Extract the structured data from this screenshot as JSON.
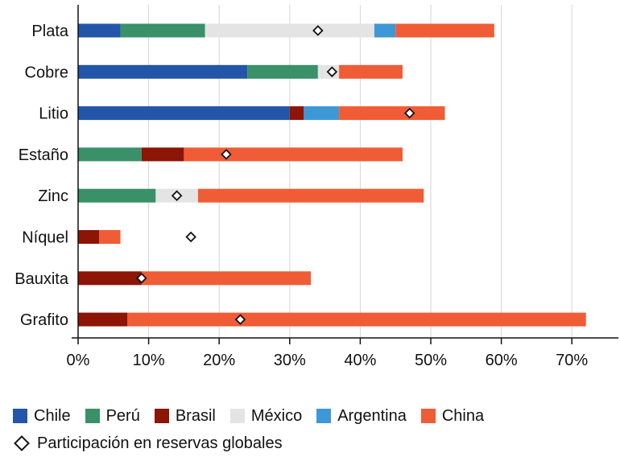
{
  "chart_data": {
    "type": "bar",
    "orientation": "horizontal",
    "stacked": true,
    "categories": [
      "Plata",
      "Cobre",
      "Litio",
      "Estaño",
      "Zinc",
      "Níquel",
      "Bauxita",
      "Grafito"
    ],
    "series": [
      {
        "name": "Chile",
        "color": "#2356a8",
        "values": [
          6,
          24,
          30,
          0,
          0,
          0,
          0,
          0
        ]
      },
      {
        "name": "Perú",
        "color": "#3a9068",
        "values": [
          12,
          10,
          0,
          9,
          11,
          0,
          0,
          0
        ]
      },
      {
        "name": "Brasil",
        "color": "#8c1506",
        "values": [
          0,
          0,
          2,
          6,
          0,
          3,
          9,
          7
        ]
      },
      {
        "name": "México",
        "color": "#e4e4e4",
        "values": [
          24,
          3,
          0,
          0,
          6,
          0,
          0,
          0
        ]
      },
      {
        "name": "Argentina",
        "color": "#3e98d6",
        "values": [
          3,
          0,
          5,
          0,
          0,
          0,
          0,
          0
        ]
      },
      {
        "name": "China",
        "color": "#f05c35",
        "values": [
          14,
          9,
          15,
          31,
          32,
          3,
          24,
          65
        ]
      }
    ],
    "markers": {
      "name": "Participación en reservas globales",
      "values": [
        34,
        36,
        47,
        21,
        14,
        16,
        9,
        23
      ]
    },
    "xlim": [
      0,
      75
    ],
    "xticks": [
      0,
      10,
      20,
      30,
      40,
      50,
      60,
      70
    ],
    "xtick_labels": [
      "0%",
      "10%",
      "20%",
      "30%",
      "40%",
      "50%",
      "60%",
      "70%"
    ],
    "grid": "vertical",
    "legend_position": "bottom"
  }
}
